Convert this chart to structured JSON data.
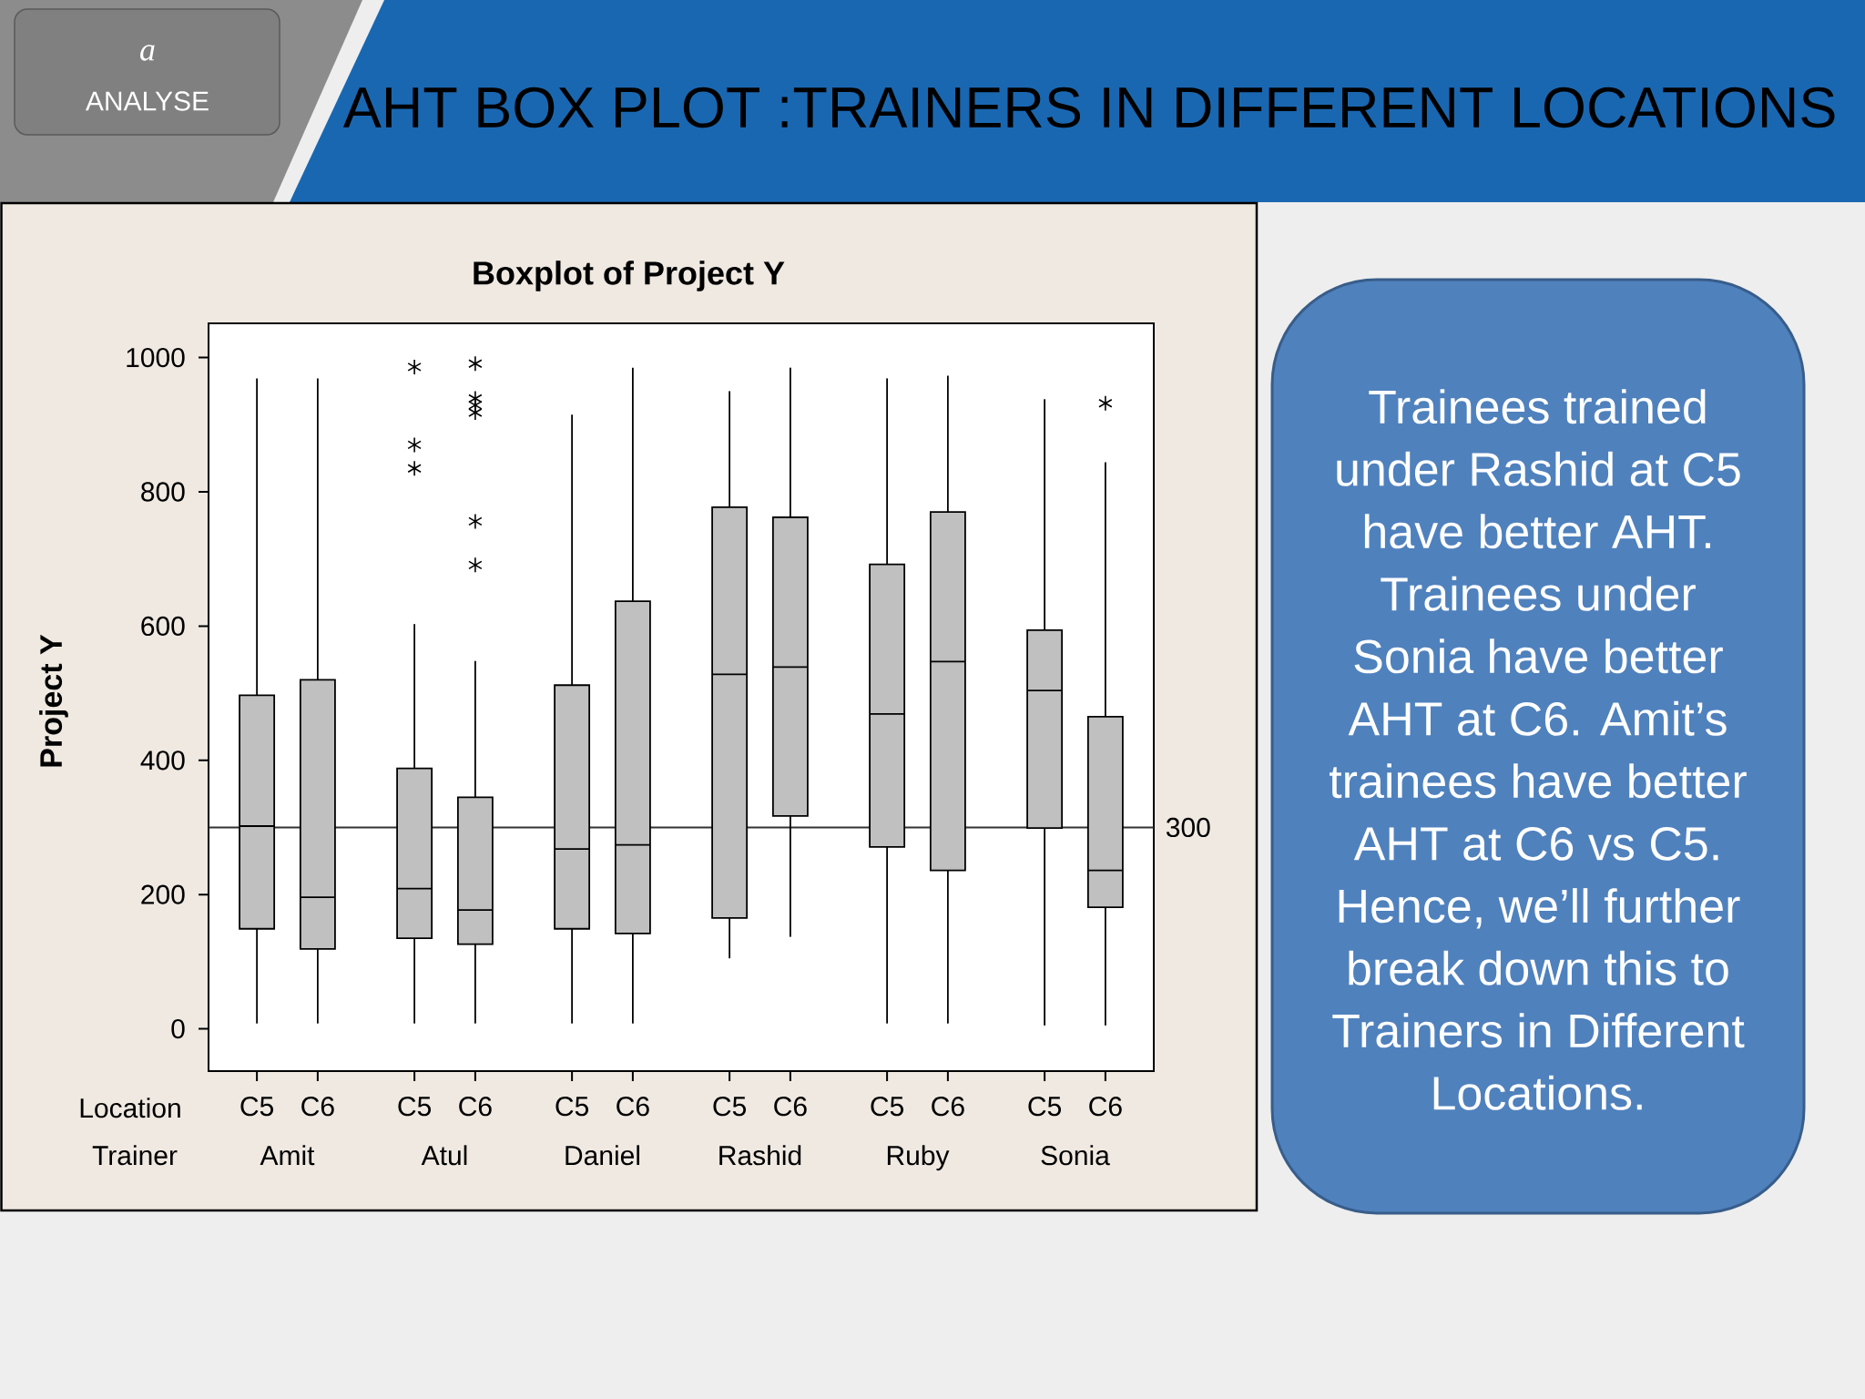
{
  "chart_data": {
    "type": "box",
    "title": "AHT BOX PLOT :TRAINERS IN DIFFERENT LOCATIONS",
    "subtitle": "Boxplot of Project Y",
    "ylabel": "Project Y",
    "xlabel": "Trainer",
    "legend_title": "Location",
    "legend": "bottom",
    "categories": [
      "Amit",
      "Atul",
      "Daniel",
      "Rashid",
      "Ruby",
      "Sonia"
    ],
    "series": [
      {
        "name": "C5",
        "color": "#c0c0c0",
        "boxes": [
          {
            "low": 8,
            "q1": 149,
            "median": 302,
            "q3": 497,
            "high": 969
          },
          {
            "low": 8,
            "q1": 135,
            "median": 209,
            "q3": 388,
            "high": 603,
            "outliers": [
              986,
              870,
              835
            ]
          },
          {
            "low": 8,
            "q1": 149,
            "median": 268,
            "q3": 512,
            "high": 915
          },
          {
            "low": 105,
            "q1": 165,
            "median": 528,
            "q3": 777,
            "high": 950
          },
          {
            "low": 8,
            "q1": 271,
            "median": 469,
            "q3": 692,
            "high": 969
          },
          {
            "low": 5,
            "q1": 299,
            "median": 504,
            "q3": 594,
            "high": 938
          }
        ]
      },
      {
        "name": "C6",
        "color": "#c0c0c0",
        "boxes": [
          {
            "low": 8,
            "q1": 119,
            "median": 196,
            "q3": 520,
            "high": 969
          },
          {
            "low": 8,
            "q1": 126,
            "median": 177,
            "q3": 345,
            "high": 548,
            "outliers": [
              991,
              939,
              929,
              918,
              756,
              691
            ]
          },
          {
            "low": 8,
            "q1": 142,
            "median": 274,
            "q3": 637,
            "high": 985
          },
          {
            "low": 137,
            "q1": 317,
            "median": 539,
            "q3": 762,
            "high": 985
          },
          {
            "low": 8,
            "q1": 236,
            "median": 547,
            "q3": 770,
            "high": 973
          },
          {
            "low": 5,
            "q1": 181,
            "median": 236,
            "q3": 465,
            "high": 844,
            "outliers": [
              932
            ]
          }
        ]
      }
    ],
    "ylim": [
      -63,
      1051
    ],
    "yticks": [
      0,
      200,
      400,
      600,
      800,
      1000
    ],
    "ref_lines": [
      {
        "axis": "y",
        "value": 300,
        "label": "300",
        "color": "#333333"
      }
    ],
    "marker": "star",
    "annotations": [
      "a",
      "ANALYSE",
      "Trainees trained under Rashid at C5 have better AHT. Trainees under Sonia have better AHT at C6. Amit’s trainees have better AHT at C6 vs C5. Hence, we’ll further break down this to Trainers in Different Locations."
    ]
  }
}
